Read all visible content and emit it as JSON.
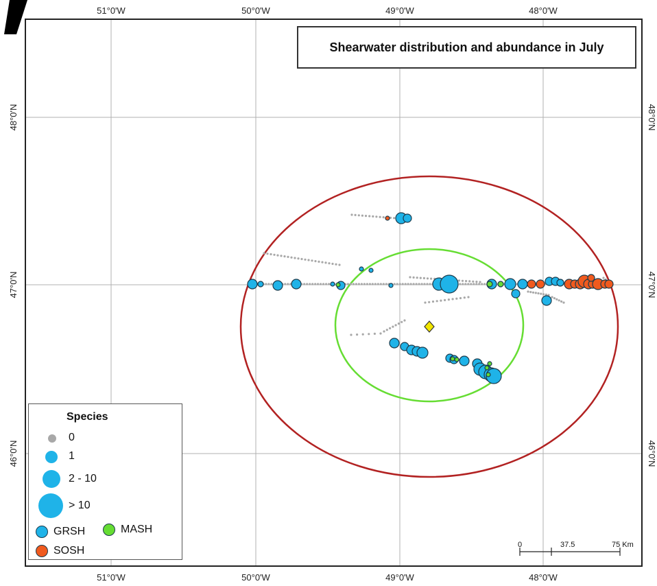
{
  "map": {
    "title": "Shearwater distribution and abundance in July",
    "longitude_labels": [
      "51°0'W",
      "50°0'W",
      "49°0'W",
      "48°0'W"
    ],
    "latitude_labels": [
      "48°0'N",
      "47°0'N",
      "46°0'N"
    ],
    "colors": {
      "frame": "#222222",
      "graticule": "#b0b0b0",
      "outer_boundary": "#b22222",
      "inner_boundary": "#66dd33",
      "station_marker": "#f2e600",
      "grsh": "#1fb3e8",
      "sosh": "#f05a1e",
      "mash": "#66dd33",
      "zero": "#a8a8a8"
    },
    "station_marker_icon": "yellow-diamond-icon"
  },
  "legend": {
    "title": "Species",
    "size_classes": [
      {
        "label": "0"
      },
      {
        "label": "1"
      },
      {
        "label": "2 - 10"
      },
      {
        "label": "> 10"
      }
    ],
    "species": [
      {
        "code": "GRSH",
        "color": "#1fb3e8"
      },
      {
        "code": "MASH",
        "color": "#66dd33"
      },
      {
        "code": "SOSH",
        "color": "#f05a1e"
      }
    ]
  },
  "scale": {
    "labels": [
      "0",
      "37.5",
      "75 Km"
    ]
  }
}
